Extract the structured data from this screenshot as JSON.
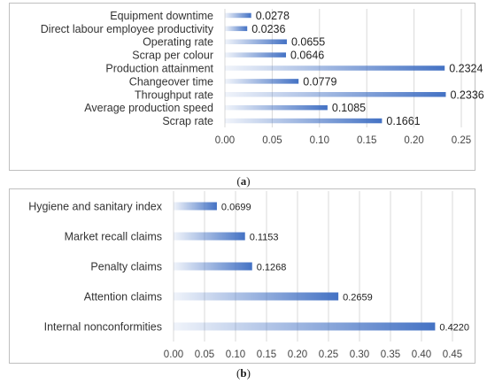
{
  "chart_data": [
    {
      "type": "bar",
      "orientation": "horizontal",
      "caption": "a",
      "categories": [
        "Equipment downtime",
        "Direct labour employee productivity",
        "Operating rate",
        "Scrap per colour",
        "Production attainment",
        "Changeover time",
        "Throughput rate",
        "Average production speed",
        "Scrap rate"
      ],
      "values": [
        0.0278,
        0.0236,
        0.0655,
        0.0646,
        0.2324,
        0.0779,
        0.2336,
        0.1085,
        0.1661
      ],
      "value_labels": [
        "0.0278",
        "0.0236",
        "0.0655",
        "0.0646",
        "0.2324",
        "0.0779",
        "0.2336",
        "0.1085",
        "0.1661"
      ],
      "xlim": [
        0,
        0.25
      ],
      "ticks": [
        "0.00",
        "0.05",
        "0.10",
        "0.15",
        "0.20",
        "0.25"
      ],
      "grid": "vertical",
      "bar_color": "#4472c4",
      "gradient": true
    },
    {
      "type": "bar",
      "orientation": "horizontal",
      "caption": "b",
      "categories": [
        "Hygiene and sanitary index",
        "Market recall claims",
        "Penalty claims",
        "Attention claims",
        "Internal nonconformities"
      ],
      "values": [
        0.0699,
        0.1153,
        0.1268,
        0.2659,
        0.422
      ],
      "value_labels": [
        "0.0699",
        "0.1153",
        "0.1268",
        "0.2659",
        "0.4220"
      ],
      "xlim": [
        0,
        0.45
      ],
      "ticks": [
        "0.00",
        "0.05",
        "0.10",
        "0.15",
        "0.20",
        "0.25",
        "0.30",
        "0.35",
        "0.40",
        "0.45"
      ],
      "grid": "vertical",
      "bar_color": "#4472c4",
      "gradient": true
    }
  ],
  "captions": {
    "a": {
      "open": "(",
      "letter": "a",
      "close": ")"
    },
    "b": {
      "open": "(",
      "letter": "b",
      "close": ")"
    }
  }
}
